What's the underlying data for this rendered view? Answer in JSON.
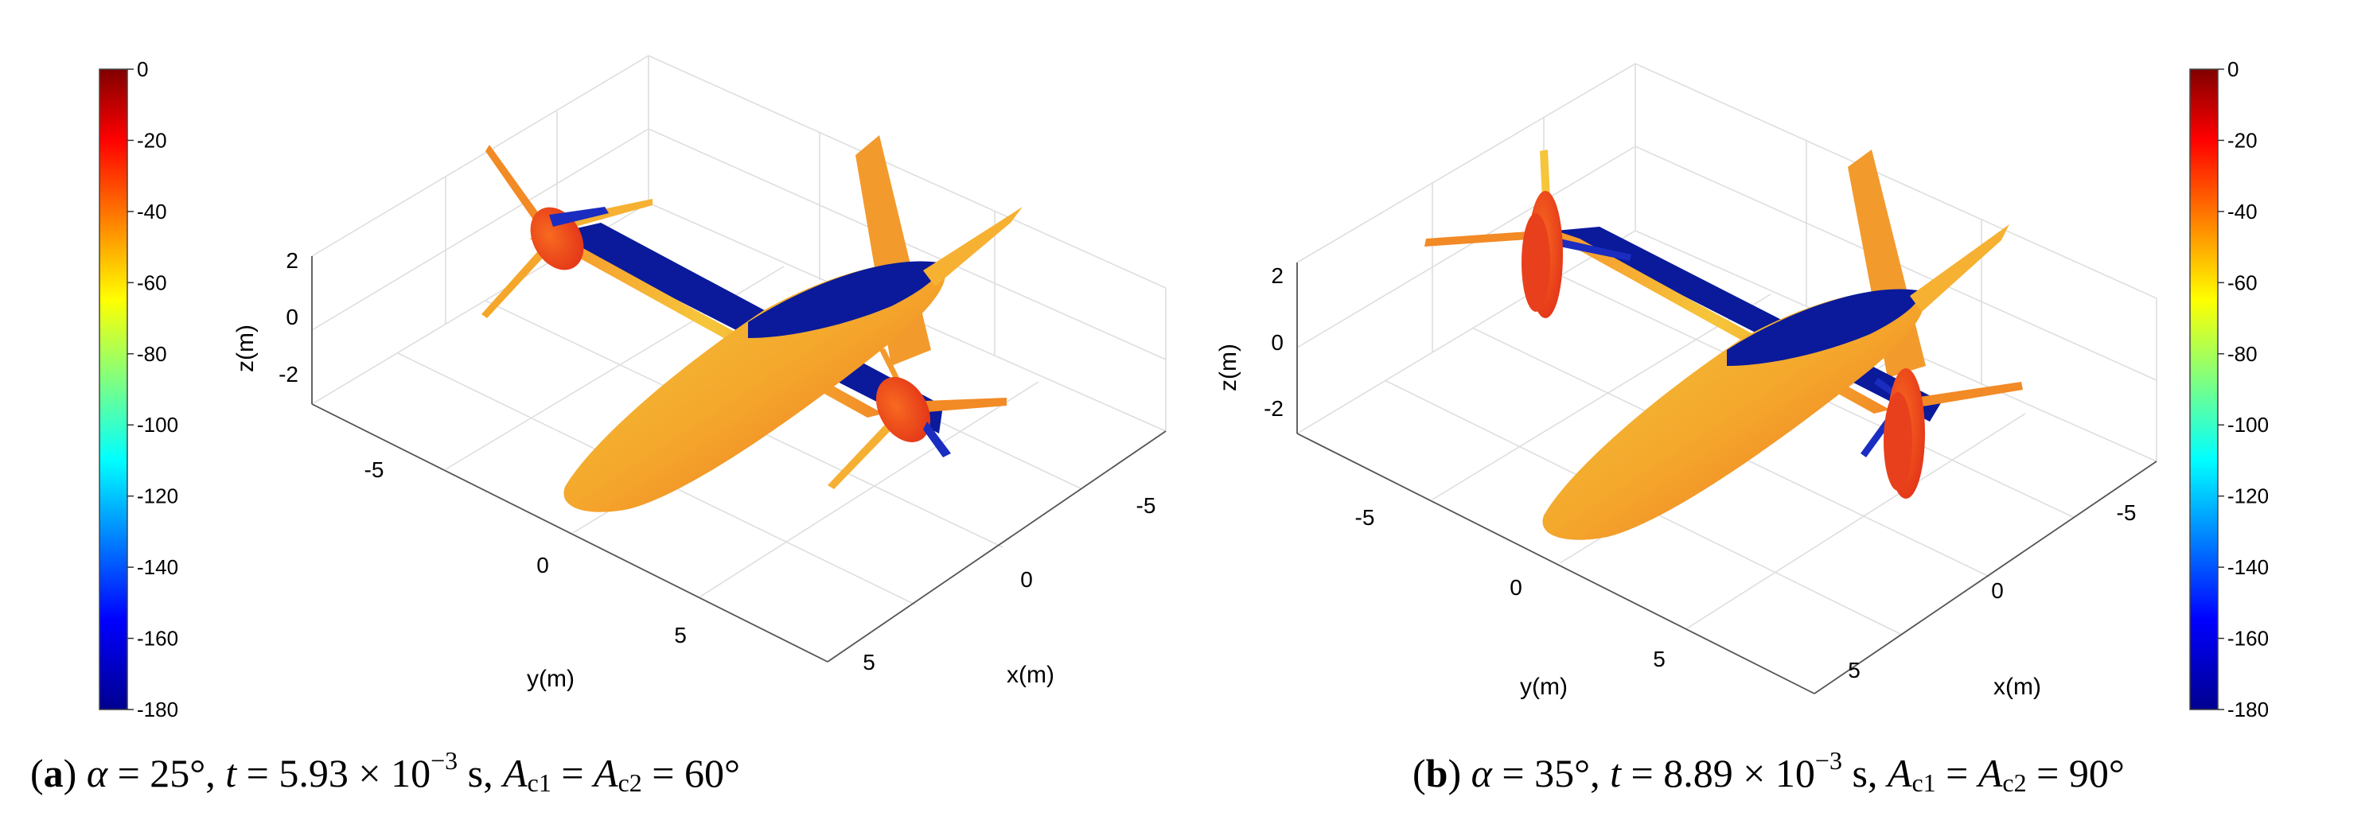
{
  "chart_data": [
    {
      "type": "surface-3d",
      "panel": "a",
      "xlabel": "x(m)",
      "ylabel": "y(m)",
      "zlabel": "z(m)",
      "x_ticks": [
        "-5",
        "0",
        "5"
      ],
      "y_ticks": [
        "-5",
        "0",
        "5"
      ],
      "z_ticks": [
        "2",
        "0",
        "-2"
      ],
      "colorbar": {
        "min": -180,
        "max": 0,
        "ticks": [
          "0",
          "-20",
          "-40",
          "-60",
          "-80",
          "-100",
          "-120",
          "-140",
          "-160",
          "-180"
        ]
      },
      "alpha": "25°",
      "t": "5.93 × 10",
      "t_exp": "−3",
      "t_unit": "s",
      "Ac": "60°"
    },
    {
      "type": "surface-3d",
      "panel": "b",
      "xlabel": "x(m)",
      "ylabel": "y(m)",
      "zlabel": "z(m)",
      "x_ticks": [
        "-5",
        "0",
        "5"
      ],
      "y_ticks": [
        "-5",
        "0",
        "5"
      ],
      "z_ticks": [
        "2",
        "0",
        "-2"
      ],
      "colorbar": {
        "min": -180,
        "max": 0,
        "ticks": [
          "0",
          "-20",
          "-40",
          "-60",
          "-80",
          "-100",
          "-120",
          "-140",
          "-160",
          "-180"
        ]
      },
      "alpha": "35°",
      "t": "8.89 × 10",
      "t_exp": "−3",
      "t_unit": "s",
      "Ac": "90°"
    }
  ],
  "captions": [
    {
      "label": "a",
      "alpha_sym": "α",
      "t_sym": "t",
      "ac_sym": "A",
      "ac1": "c1",
      "ac2": "c2"
    },
    {
      "label": "b",
      "alpha_sym": "α",
      "t_sym": "t",
      "ac_sym": "A",
      "ac1": "c1",
      "ac2": "c2"
    }
  ]
}
